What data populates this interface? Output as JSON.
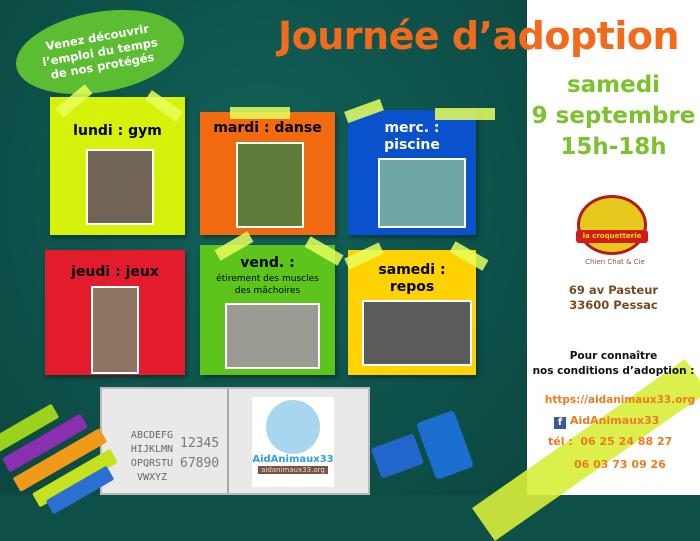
{
  "bubble": {
    "text": "Venez découvrir l’emploi du temps de nos protégés"
  },
  "title": "Journée d’adoption",
  "date": {
    "day": "samedi",
    "date": "9 septembre",
    "hours": "15h-18h"
  },
  "schedule": [
    {
      "label": "lundi : gym",
      "color": "#d6f20a"
    },
    {
      "label": "mardi : danse",
      "color": "#f26a10"
    },
    {
      "label": "merc. : piscine",
      "color": "#0a52cc"
    },
    {
      "label": "jeudi : jeux",
      "color": "#e21c2c"
    },
    {
      "label": "vend. :",
      "sub": "étirement des muscles des mâchoires",
      "color": "#5cc41a"
    },
    {
      "label": "samedi : repos",
      "color": "#ffd200"
    }
  ],
  "notebook": {
    "letters": "ABCDEFG HIJKLMN OPQRSTU VWXYZ",
    "numbers": "12345 67890",
    "logo_name": "AidAnimaux33",
    "logo_url": "aidanimaux33.org"
  },
  "partner": {
    "name": "la croquetterie",
    "tagline": "Chien Chat & Cie"
  },
  "address": {
    "line1": "69 av Pasteur",
    "line2": "33600 Pessac"
  },
  "conditions": {
    "line1": "Pour connaître",
    "line2": "nos conditions d’adoption :"
  },
  "contact": {
    "website": "https://aidanimaux33.org",
    "facebook": "AidAnimaux33",
    "phone_label": "tél :",
    "phone1": "06 25 24 88 27",
    "phone2": "06 03 73 09 26"
  },
  "colors": {
    "board": "#0e5048",
    "title": "#f26a1b",
    "date": "#7cc22e",
    "contact": "#f07a1e",
    "address": "#7a4a1e"
  }
}
